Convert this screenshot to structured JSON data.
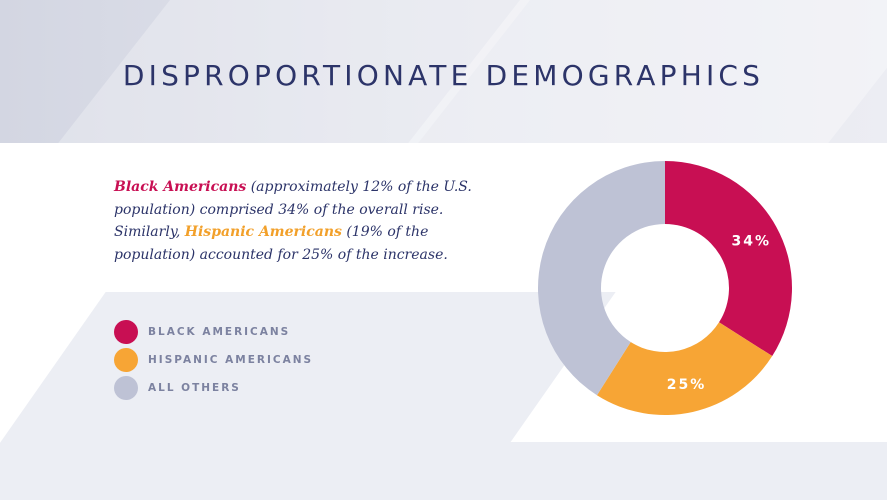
{
  "title": "DISPROPORTIONATE DEMOGRAPHICS",
  "description": {
    "black_americans": "Black Americans",
    "part1": " (approximately 12% of the U.S. population) comprised 34% of the overall rise. Similarly, ",
    "hispanic_americans": "Hispanic Americans",
    "part2": " (19% of the population) accounted for 25% of the increase."
  },
  "colors": {
    "black_americans": "#c80f53",
    "hispanic_americans": "#f7a535",
    "all_others": "#bec2d5",
    "title": "#2c3469"
  },
  "legend": [
    {
      "label": "BLACK AMERICANS",
      "color": "#c80f53"
    },
    {
      "label": "HISPANIC AMERICANS",
      "color": "#f7a535"
    },
    {
      "label": "ALL OTHERS",
      "color": "#bec2d5"
    }
  ],
  "chart_data": {
    "type": "pie",
    "title": "",
    "categories": [
      "Black Americans",
      "Hispanic Americans",
      "All Others"
    ],
    "values": [
      34,
      25,
      41
    ],
    "unit": "%",
    "data_labels": [
      "34%",
      "25%",
      ""
    ],
    "colors": [
      "#c80f53",
      "#f7a535",
      "#bec2d5"
    ],
    "donut": true,
    "start_angle_deg": 0,
    "legend_position": "left"
  }
}
